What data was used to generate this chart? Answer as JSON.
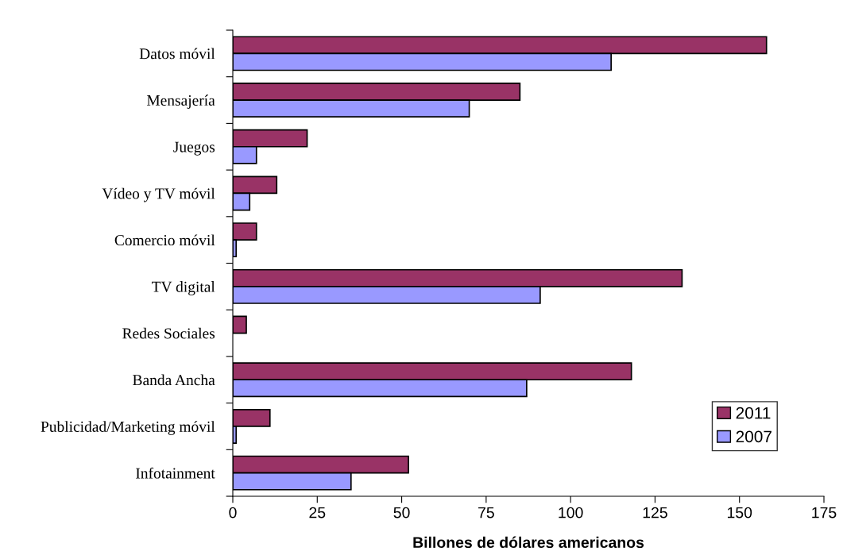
{
  "chart_data": {
    "type": "bar",
    "orientation": "horizontal",
    "xlabel": "Billones de dólares americanos",
    "categories": [
      "Datos móvil",
      "Mensajería",
      "Juegos",
      "Vídeo y TV móvil",
      "Comercio móvil",
      "TV digital",
      "Redes Sociales",
      "Banda Ancha",
      "Publicidad/Marketing móvil",
      "Infotainment"
    ],
    "series": [
      {
        "name": "2011",
        "color": "#993366",
        "values": [
          158,
          85,
          22,
          13,
          7,
          133,
          4,
          118,
          11,
          52
        ]
      },
      {
        "name": "2007",
        "color": "#9999ff",
        "values": [
          112,
          70,
          7,
          5,
          1,
          91,
          null,
          87,
          1,
          35
        ]
      }
    ],
    "xlim": [
      0,
      175
    ],
    "xticks": [
      0,
      25,
      50,
      75,
      100,
      125,
      150,
      175
    ],
    "grid": false,
    "legend": "bottom right"
  }
}
